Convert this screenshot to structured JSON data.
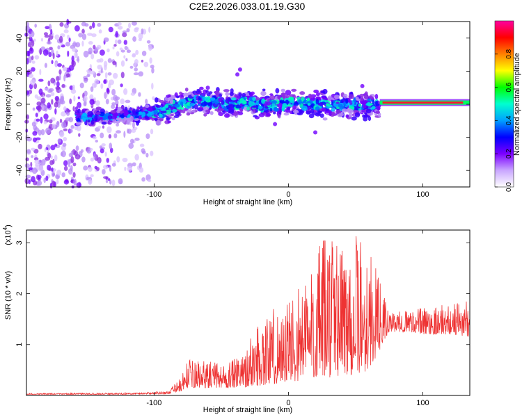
{
  "title": "C2E2.2026.033.01.19.G30",
  "chart_data": [
    {
      "type": "heatmap",
      "name": "spectrogram",
      "xlabel": "Height of straight line (km)",
      "ylabel": "Frequency (Hz)",
      "xlim": [
        -195,
        135
      ],
      "ylim": [
        -50,
        50
      ],
      "xticks": [
        -100,
        0,
        100
      ],
      "yticks": [
        -40,
        -20,
        0,
        20,
        40
      ],
      "grid": false,
      "colorbar": {
        "label": "Normalized spectral amplitude",
        "range": [
          0,
          1
        ],
        "ticks": [
          0.0,
          0.2,
          0.4,
          0.6,
          0.8
        ],
        "colormap": [
          "#ffffff",
          "#c9a6ff",
          "#7b00ff",
          "#0000ff",
          "#00a0ff",
          "#00ffd0",
          "#00ff00",
          "#ffff00",
          "#ff8000",
          "#ff0000",
          "#ff00a0"
        ]
      },
      "trend": {
        "x": [
          -155,
          -130,
          -110,
          -95,
          -85,
          -75,
          -65,
          -55,
          -45,
          -35,
          -25,
          -15,
          -5,
          5,
          15,
          25,
          35,
          45,
          55,
          65,
          70,
          135
        ],
        "center_freq": [
          -8,
          -7,
          -6,
          -5,
          -1,
          1,
          2,
          1,
          0,
          1,
          0,
          -1,
          0,
          1,
          0,
          0,
          -1,
          0,
          -1,
          0,
          1,
          1
        ]
      },
      "noise_region": [
        -195,
        -100
      ]
    },
    {
      "type": "line",
      "name": "snr",
      "xlabel": "Height of straight line (km)",
      "ylabel": "SNR (10 * v/v)",
      "multiplier_label": "(x10",
      "multiplier_exp": "4",
      "multiplier_close": ")",
      "xlim": [
        -195,
        135
      ],
      "ylim": [
        0,
        3.25
      ],
      "xticks": [
        -100,
        0,
        100
      ],
      "yticks": [
        1,
        2,
        3
      ],
      "color": "#ee3333",
      "envelope": {
        "x": [
          -195,
          -120,
          -90,
          -80,
          -75,
          -50,
          -35,
          -20,
          0,
          10,
          20,
          30,
          40,
          50,
          60,
          70,
          75,
          90,
          100,
          120,
          135
        ],
        "low": [
          0.02,
          0.02,
          0.03,
          0.08,
          0.15,
          0.15,
          0.15,
          0.2,
          0.25,
          0.3,
          0.35,
          0.35,
          0.4,
          0.4,
          0.5,
          1.0,
          1.25,
          1.25,
          1.2,
          1.2,
          1.15
        ],
        "high": [
          0.04,
          0.05,
          0.08,
          0.35,
          0.7,
          0.65,
          0.75,
          1.6,
          1.9,
          2.3,
          2.8,
          3.25,
          3.2,
          3.25,
          2.9,
          2.1,
          1.6,
          1.7,
          1.75,
          1.8,
          1.9
        ]
      }
    }
  ]
}
